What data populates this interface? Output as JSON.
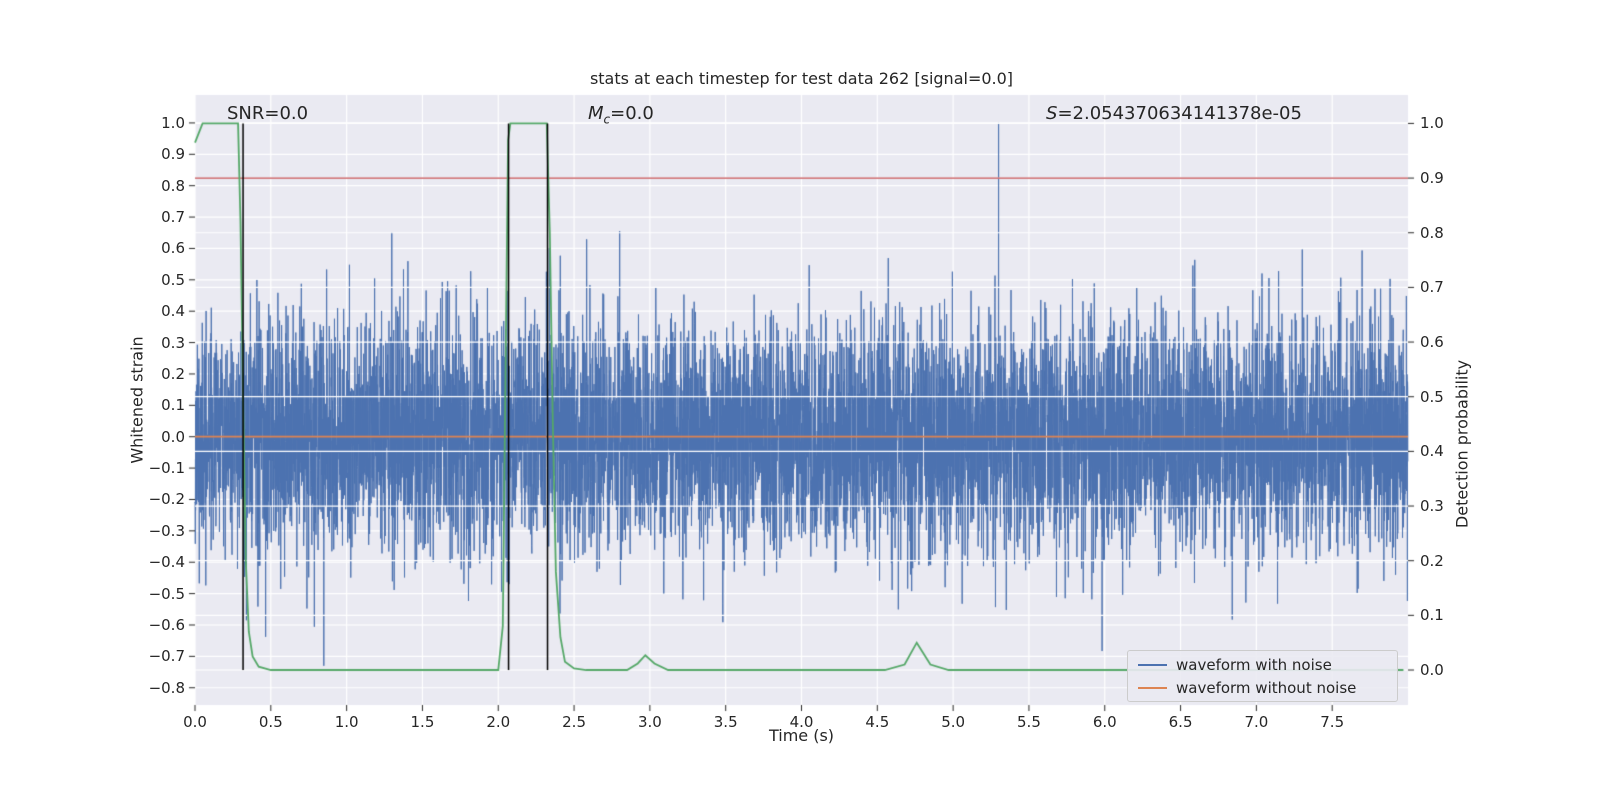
{
  "chart_data": {
    "type": "line",
    "title": "stats at each timestep for test data 262 [signal=0.0]",
    "xlabel": "Time (s)",
    "ylabel_left": "Whitened strain",
    "ylabel_right": "Detection probability",
    "xlim": [
      0.0,
      8.0
    ],
    "ylim_left": [
      -0.855,
      1.089
    ],
    "ylim_right": [
      -0.064,
      1.052
    ],
    "background": "#EAEAF2",
    "grid_color": "#FFFFFF",
    "tick_color": "#262626",
    "grid": true,
    "x_ticks": [
      [
        0.0,
        "0.0"
      ],
      [
        0.5,
        "0.5"
      ],
      [
        1.0,
        "1.0"
      ],
      [
        1.5,
        "1.5"
      ],
      [
        2.0,
        "2.0"
      ],
      [
        2.5,
        "2.5"
      ],
      [
        3.0,
        "3.0"
      ],
      [
        3.5,
        "3.5"
      ],
      [
        4.0,
        "4.0"
      ],
      [
        4.5,
        "4.5"
      ],
      [
        5.0,
        "5.0"
      ],
      [
        5.5,
        "5.5"
      ],
      [
        6.0,
        "6.0"
      ],
      [
        6.5,
        "6.5"
      ],
      [
        7.0,
        "7.0"
      ],
      [
        7.5,
        "7.5"
      ]
    ],
    "y_ticks_left": [
      [
        1.0,
        "1.0"
      ],
      [
        0.9,
        "0.9"
      ],
      [
        0.8,
        "0.8"
      ],
      [
        0.7,
        "0.7"
      ],
      [
        0.6,
        "0.6"
      ],
      [
        0.5,
        "0.5"
      ],
      [
        0.4,
        "0.4"
      ],
      [
        0.3,
        "0.3"
      ],
      [
        0.2,
        "0.2"
      ],
      [
        0.1,
        "0.1"
      ],
      [
        0.0,
        "0.0"
      ],
      [
        -0.1,
        "−0.1"
      ],
      [
        -0.2,
        "−0.2"
      ],
      [
        -0.3,
        "−0.3"
      ],
      [
        -0.4,
        "−0.4"
      ],
      [
        -0.5,
        "−0.5"
      ],
      [
        -0.6,
        "−0.6"
      ],
      [
        -0.7,
        "−0.7"
      ],
      [
        -0.8,
        "−0.8"
      ]
    ],
    "y_ticks_right": [
      [
        1.0,
        "1.0"
      ],
      [
        0.9,
        "0.9"
      ],
      [
        0.8,
        "0.8"
      ],
      [
        0.7,
        "0.7"
      ],
      [
        0.6,
        "0.6"
      ],
      [
        0.5,
        "0.5"
      ],
      [
        0.4,
        "0.4"
      ],
      [
        0.3,
        "0.3"
      ],
      [
        0.2,
        "0.2"
      ],
      [
        0.1,
        "0.1"
      ],
      [
        0.0,
        "0.0"
      ]
    ],
    "annotations": {
      "snr": "SNR=0.0",
      "mc_var": "M",
      "mc_sub": "c",
      "mc_rest": "=0.0",
      "s_var": "S",
      "s_rest": "=2.054370634141378e-05"
    },
    "series": [
      {
        "name": "waveform with noise",
        "type": "noise",
        "axis": "left",
        "color": "#4C72B0",
        "n_points": 8192,
        "seed": 11,
        "std": 0.18,
        "outliers": [
          {
            "t": 5.3,
            "v": 1.0
          },
          {
            "t": 0.85,
            "v": -0.73
          }
        ]
      },
      {
        "name": "waveform without noise",
        "type": "constant",
        "axis": "left",
        "color": "#DD8452",
        "value": 0.0
      },
      {
        "name": "detection probability",
        "type": "line",
        "axis": "right",
        "color": "#55A868",
        "points": [
          [
            0.0,
            0.965
          ],
          [
            0.05,
            1.0
          ],
          [
            0.284,
            1.0
          ],
          [
            0.3,
            0.82
          ],
          [
            0.317,
            0.5
          ],
          [
            0.335,
            0.2
          ],
          [
            0.355,
            0.07
          ],
          [
            0.38,
            0.025
          ],
          [
            0.42,
            0.006
          ],
          [
            0.5,
            0.0
          ],
          [
            1.2,
            0.0
          ],
          [
            2.0,
            0.0
          ],
          [
            2.03,
            0.08
          ],
          [
            2.05,
            0.6
          ],
          [
            2.065,
            0.97
          ],
          [
            2.08,
            1.0
          ],
          [
            2.32,
            1.0
          ],
          [
            2.34,
            0.8
          ],
          [
            2.36,
            0.45
          ],
          [
            2.38,
            0.18
          ],
          [
            2.41,
            0.06
          ],
          [
            2.44,
            0.015
          ],
          [
            2.5,
            0.003
          ],
          [
            2.58,
            0.0
          ],
          [
            2.85,
            0.0
          ],
          [
            2.92,
            0.012
          ],
          [
            2.97,
            0.027
          ],
          [
            3.03,
            0.012
          ],
          [
            3.12,
            0.0
          ],
          [
            4.55,
            0.0
          ],
          [
            4.68,
            0.01
          ],
          [
            4.76,
            0.05
          ],
          [
            4.85,
            0.01
          ],
          [
            4.97,
            0.0
          ],
          [
            7.97,
            0.0
          ]
        ]
      }
    ],
    "threshold_line": {
      "axis": "right",
      "value": 0.9,
      "color": "#C44E52"
    },
    "event_lines": {
      "color": "#000000",
      "times": [
        0.317,
        2.068,
        2.325
      ],
      "span": [
        0.0,
        1.0
      ]
    },
    "legend": {
      "position": "lower right",
      "items": [
        {
          "label": "waveform with noise",
          "color": "#4C72B0"
        },
        {
          "label": "waveform without noise",
          "color": "#DD8452"
        }
      ]
    }
  }
}
